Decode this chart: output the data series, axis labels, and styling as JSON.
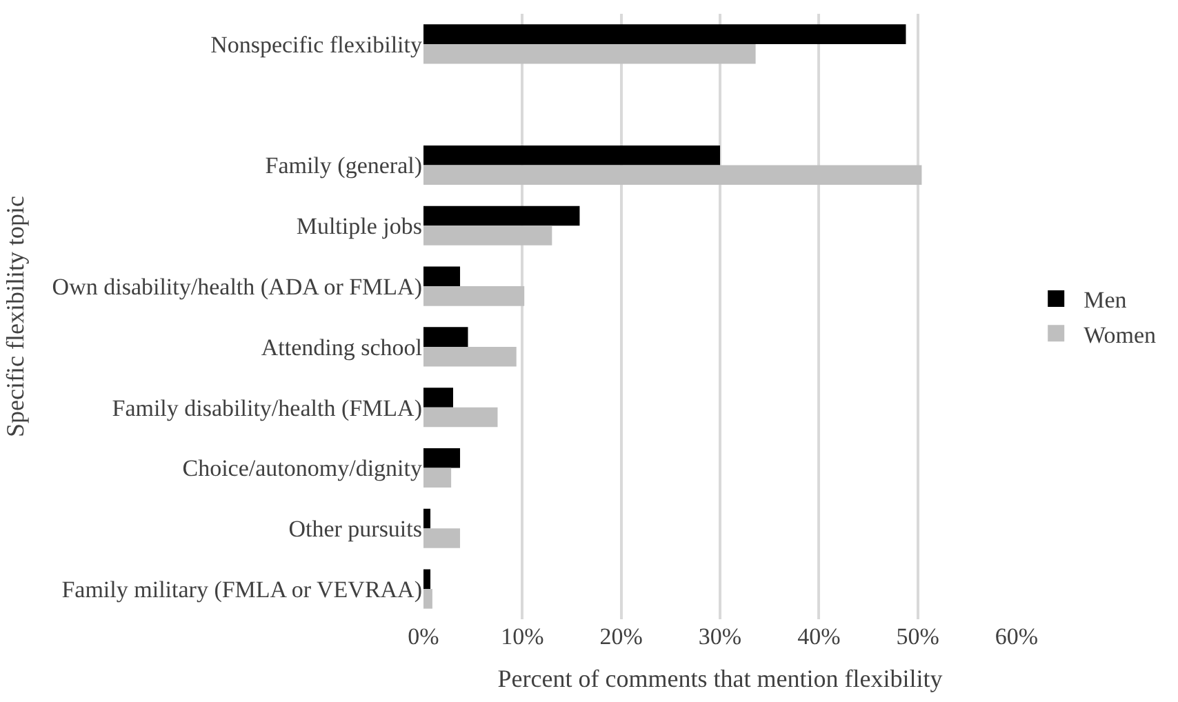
{
  "chart_data": {
    "type": "bar",
    "orientation": "horizontal",
    "xlabel": "Percent of comments that mention flexibility",
    "ylabel": "Specific flexibility topic",
    "categories": [
      "Nonspecific flexibility",
      null,
      "Family (general)",
      "Multiple jobs",
      "Own disability/health (ADA or FMLA)",
      "Attending school",
      "Family disability/health (FMLA)",
      "Choice/autonomy/dignity",
      "Other pursuits",
      "Family military (FMLA or VEVRAA)"
    ],
    "series": [
      {
        "name": "Men",
        "color": "#000000",
        "values": [
          48.8,
          null,
          30.0,
          15.8,
          3.7,
          4.5,
          3.0,
          3.7,
          0.7,
          0.7
        ]
      },
      {
        "name": "Women",
        "color": "#bfbfbf",
        "values": [
          33.6,
          null,
          50.4,
          13.0,
          10.2,
          9.4,
          7.5,
          2.8,
          3.7,
          0.9
        ]
      }
    ],
    "xlim": [
      0,
      60
    ],
    "xticks": [
      {
        "value": 0,
        "label": "0%"
      },
      {
        "value": 10,
        "label": "10%"
      },
      {
        "value": 20,
        "label": "20%"
      },
      {
        "value": 30,
        "label": "30%"
      },
      {
        "value": 40,
        "label": "40%"
      },
      {
        "value": 50,
        "label": "50%"
      },
      {
        "value": 60,
        "label": "60%"
      }
    ],
    "grid": "x",
    "legend": "right"
  }
}
